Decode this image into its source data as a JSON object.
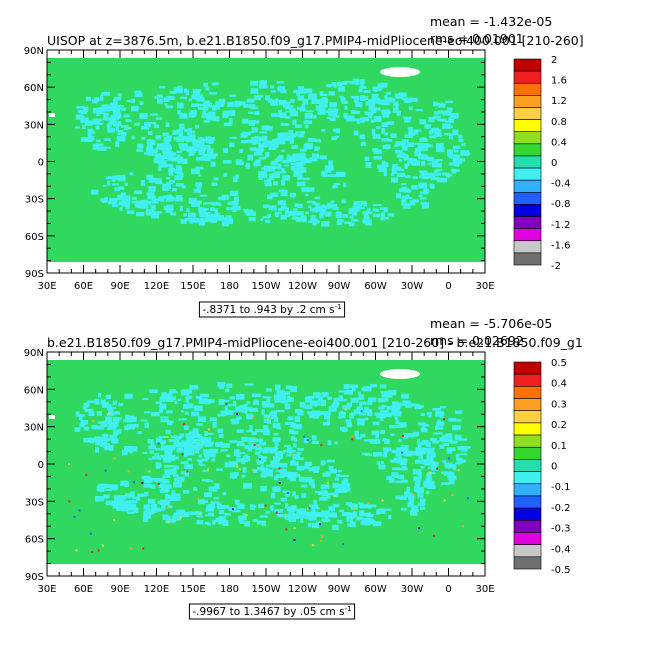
{
  "panels": [
    {
      "title": "UISOP at z=3876.5m, b.e21.B1850.f09_g17.PMIP4-midPliocene-eoi400.001 [210-260]",
      "mean": "mean = -1.432e-05",
      "rms": "rms = 0.01901",
      "range": "-.8371 to .943 by .2 cm s",
      "range_exp": "-1",
      "colorbar": {
        "labels": [
          "2",
          "1.6",
          "1.2",
          "0.8",
          "0.4",
          "0",
          "-0.4",
          "-0.8",
          "-1.2",
          "-1.6",
          "-2"
        ],
        "colors": [
          "#c00000",
          "#f02020",
          "#ff7000",
          "#ffa020",
          "#ffd040",
          "#ffff00",
          "#90e020",
          "#30d830",
          "#20e0b0",
          "#40f0f0",
          "#30b0ff",
          "#2060ff",
          "#0000e0",
          "#8000c0",
          "#e000e0",
          "#c8c8c8",
          "#707070"
        ]
      }
    },
    {
      "title": "b.e21.B1850.f09_g17.PMIP4-midPliocene-eoi400.001 [210-260] - b.e21.B1850.f09_g1",
      "mean": "mean = -5.706e-05",
      "rms": "rms = 0.02692",
      "range": "-.9967 to 1.3467 by .05 cm s",
      "range_exp": "-1",
      "colorbar": {
        "labels": [
          "0.5",
          "0.4",
          "0.3",
          "0.2",
          "0.1",
          "0",
          "-0.1",
          "-0.2",
          "-0.3",
          "-0.4",
          "-0.5"
        ],
        "colors": [
          "#c00000",
          "#f02020",
          "#ff7000",
          "#ffa020",
          "#ffd040",
          "#ffff00",
          "#90e020",
          "#30d830",
          "#20e0b0",
          "#40f0f0",
          "#30b0ff",
          "#2060ff",
          "#0000e0",
          "#8000c0",
          "#e000e0",
          "#c8c8c8",
          "#707070"
        ]
      }
    }
  ],
  "chart_data": [
    {
      "type": "heatmap",
      "title": "UISOP at z=3876.5m, b.e21.B1850.f09_g17.PMIP4-midPliocene-eoi400.001 [210-260]",
      "x_ticks": [
        "30E",
        "60E",
        "90E",
        "120E",
        "150E",
        "180",
        "150W",
        "120W",
        "90W",
        "60W",
        "30W",
        "0",
        "30E"
      ],
      "y_ticks": [
        "90N",
        "60N",
        "30N",
        "0",
        "30S",
        "60S",
        "90S"
      ],
      "xlim": [
        30,
        390
      ],
      "ylim": [
        -90,
        90
      ],
      "levels": [
        -2,
        -1.6,
        -1.2,
        -0.8,
        -0.4,
        0,
        0.4,
        0.8,
        1.2,
        1.6,
        2
      ],
      "units": "cm s-1",
      "mean": -1.432e-05,
      "rms": 0.01901
    },
    {
      "type": "heatmap",
      "title": "b.e21.B1850.f09_g17.PMIP4-midPliocene-eoi400.001 [210-260] - b.e21.B1850.f09_g1",
      "x_ticks": [
        "30E",
        "60E",
        "90E",
        "120E",
        "150E",
        "180",
        "150W",
        "120W",
        "90W",
        "60W",
        "30W",
        "0",
        "30E"
      ],
      "y_ticks": [
        "90N",
        "60N",
        "30N",
        "0",
        "30S",
        "60S",
        "90S"
      ],
      "xlim": [
        30,
        390
      ],
      "ylim": [
        -90,
        90
      ],
      "levels": [
        -0.5,
        -0.4,
        -0.3,
        -0.2,
        -0.1,
        0,
        0.1,
        0.2,
        0.3,
        0.4,
        0.5
      ],
      "units": "cm s-1",
      "mean": -5.706e-05,
      "rms": 0.02692
    }
  ]
}
